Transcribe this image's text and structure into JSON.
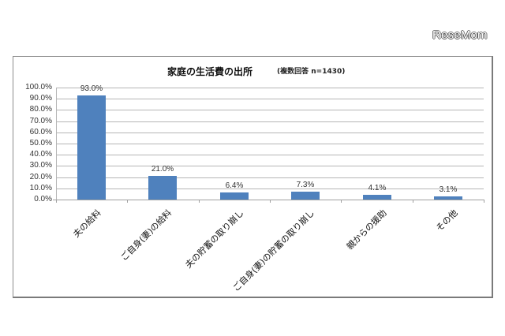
{
  "watermark": "ReseMom",
  "colors": {
    "bar": "#4f81bd",
    "grid": "#b5b5b5",
    "frame": "#8c8c8c"
  },
  "chart_data": {
    "type": "bar",
    "title": "家庭の生活費の出所",
    "subtitle": "(複数回答 n=1430)",
    "xlabel": "",
    "ylabel": "",
    "categories": [
      "夫の給料",
      "ご自身(妻)の給料",
      "夫の貯蓄の取り崩し",
      "ご自身(妻)の貯蓄の取り崩し",
      "親からの援助",
      "その他"
    ],
    "values": [
      93.0,
      21.0,
      6.4,
      7.3,
      4.1,
      3.1
    ],
    "value_labels": [
      "93.0%",
      "21.0%",
      "6.4%",
      "7.3%",
      "4.1%",
      "3.1%"
    ],
    "yticks": [
      "0.0%",
      "10.0%",
      "20.0%",
      "30.0%",
      "40.0%",
      "50.0%",
      "60.0%",
      "70.0%",
      "80.0%",
      "90.0%",
      "100.0%"
    ],
    "ylim": [
      0,
      100
    ],
    "grid": true,
    "legend": "none"
  }
}
